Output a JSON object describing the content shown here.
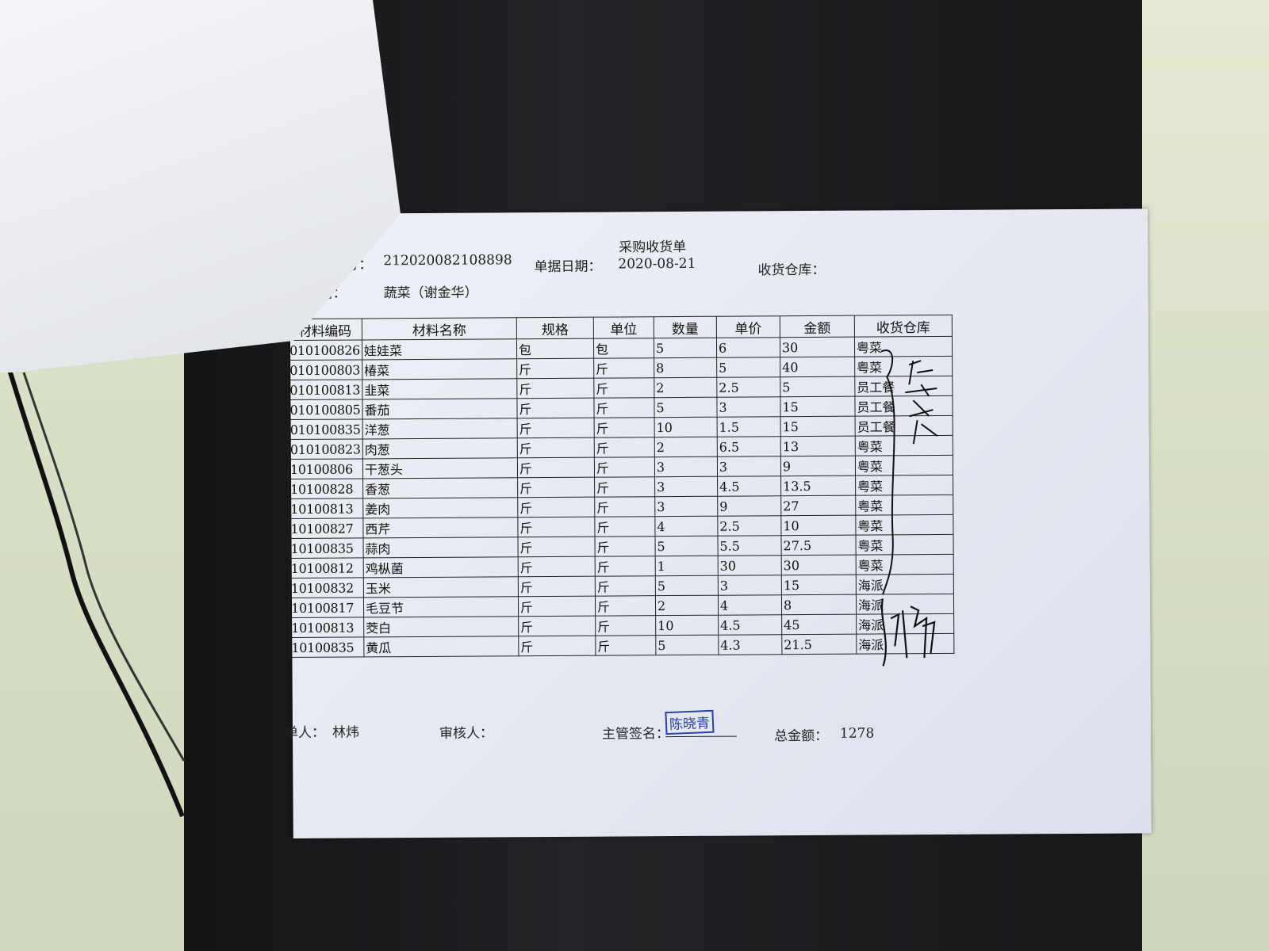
{
  "document": {
    "title": "采购收货单",
    "order_no_label": "号：",
    "order_no": "212020082108898",
    "date_label": "单据日期：",
    "date": "2020-08-21",
    "warehouse_label": "收货仓库：",
    "supplier_label": "应商：",
    "supplier": "蔬菜（谢金华）"
  },
  "table": {
    "headers": [
      "材料编码",
      "材料名称",
      "规格",
      "单位",
      "数量",
      "单价",
      "金额",
      "收货仓库"
    ],
    "rows": [
      [
        "010100826",
        "娃娃菜",
        "包",
        "包",
        "5",
        "6",
        "30",
        "粤菜"
      ],
      [
        "010100803",
        "椿菜",
        "斤",
        "斤",
        "8",
        "5",
        "40",
        "粤菜"
      ],
      [
        "010100813",
        "韭菜",
        "斤",
        "斤",
        "2",
        "2.5",
        "5",
        "员工餐"
      ],
      [
        "010100805",
        "番茄",
        "斤",
        "斤",
        "5",
        "3",
        "15",
        "员工餐"
      ],
      [
        "010100835",
        "洋葱",
        "斤",
        "斤",
        "10",
        "1.5",
        "15",
        "员工餐"
      ],
      [
        "010100823",
        "肉葱",
        "斤",
        "斤",
        "2",
        "6.5",
        "13",
        "粤菜"
      ],
      [
        "10100806",
        "干葱头",
        "斤",
        "斤",
        "3",
        "3",
        "9",
        "粤菜"
      ],
      [
        "10100828",
        "香葱",
        "斤",
        "斤",
        "3",
        "4.5",
        "13.5",
        "粤菜"
      ],
      [
        "10100813",
        "姜肉",
        "斤",
        "斤",
        "3",
        "9",
        "27",
        "粤菜"
      ],
      [
        "10100827",
        "西芹",
        "斤",
        "斤",
        "4",
        "2.5",
        "10",
        "粤菜"
      ],
      [
        "10100835",
        "蒜肉",
        "斤",
        "斤",
        "5",
        "5.5",
        "27.5",
        "粤菜"
      ],
      [
        "10100812",
        "鸡枞菌",
        "斤",
        "斤",
        "1",
        "30",
        "30",
        "粤菜"
      ],
      [
        "10100832",
        "玉米",
        "斤",
        "斤",
        "5",
        "3",
        "15",
        "海派"
      ],
      [
        "10100817",
        "毛豆节",
        "斤",
        "斤",
        "2",
        "4",
        "8",
        "海派"
      ],
      [
        "10100813",
        "茭白",
        "斤",
        "斤",
        "10",
        "4.5",
        "45",
        "海派"
      ],
      [
        "10100835",
        "黄瓜",
        "斤",
        "斤",
        "5",
        "4.3",
        "21.5",
        "海派"
      ]
    ]
  },
  "footer": {
    "maker_label": "单人：",
    "maker": "林炜",
    "reviewer_label": "审核人：",
    "supervisor_label": "主管签名：",
    "supervisor_stamp": "陈晓青",
    "total_label": "总金额：",
    "total": "1278"
  },
  "colors": {
    "stamp": "#2b3fa6",
    "ink": "#111111",
    "paper": "#e8ebf3"
  }
}
